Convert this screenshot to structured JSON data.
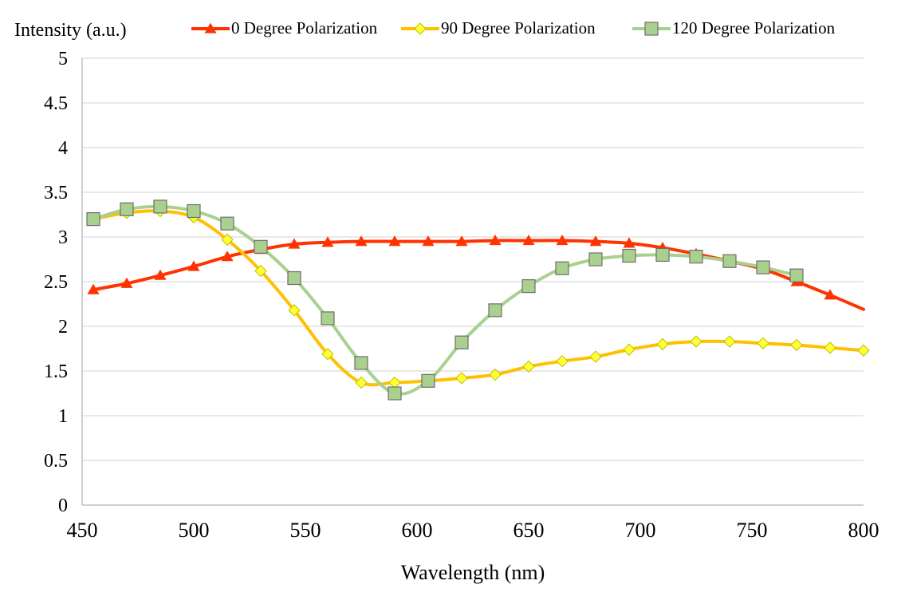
{
  "chart_data": {
    "type": "line",
    "title": "",
    "xlabel": "Wavelength  (nm)",
    "ylabel": "Intensity  (a.u.)",
    "xlim": [
      450,
      800
    ],
    "ylim": [
      0,
      5
    ],
    "x_ticks": [
      450,
      500,
      550,
      600,
      650,
      700,
      750,
      800
    ],
    "y_ticks": [
      0,
      0.5,
      1,
      1.5,
      2,
      2.5,
      3,
      3.5,
      4,
      4.5,
      5
    ],
    "x_tick_labels": [
      "450",
      "500",
      "550",
      "600",
      "650",
      "700",
      "750",
      "800"
    ],
    "y_tick_labels": [
      "0",
      "0.5",
      "1",
      "1.5",
      "2",
      "2.5",
      "3",
      "3.5",
      "4",
      "4.5",
      "5"
    ],
    "grid": "horizontal",
    "legend_position": "top",
    "series": [
      {
        "name": "0 Degree Polarization",
        "color": "#ff3300",
        "marker": "triangle",
        "marker_color": "#ff3300",
        "x": [
          455,
          470,
          485,
          500,
          515,
          530,
          545,
          560,
          575,
          590,
          605,
          620,
          635,
          650,
          665,
          680,
          695,
          710,
          725,
          740,
          755,
          770,
          785,
          800
        ],
        "y": [
          2.41,
          2.48,
          2.57,
          2.67,
          2.78,
          2.86,
          2.92,
          2.94,
          2.95,
          2.95,
          2.95,
          2.95,
          2.96,
          2.96,
          2.96,
          2.95,
          2.93,
          2.88,
          2.81,
          2.73,
          2.64,
          2.5,
          2.35,
          2.19
        ]
      },
      {
        "name": "90 Degree Polarization",
        "color": "#ffc000",
        "marker": "diamond",
        "marker_color": "#ffff33",
        "x": [
          455,
          470,
          485,
          500,
          515,
          530,
          545,
          560,
          575,
          590,
          605,
          620,
          635,
          650,
          665,
          680,
          695,
          710,
          725,
          740,
          755,
          770,
          785,
          800
        ],
        "y": [
          3.2,
          3.27,
          3.29,
          3.22,
          2.97,
          2.62,
          2.18,
          1.69,
          1.37,
          1.37,
          1.39,
          1.42,
          1.46,
          1.55,
          1.61,
          1.66,
          1.74,
          1.8,
          1.83,
          1.83,
          1.81,
          1.79,
          1.76,
          1.73
        ]
      },
      {
        "name": "120 Degree Polarization",
        "color": "#a9d08e",
        "marker": "square",
        "marker_color": "#a9d08e",
        "x": [
          455,
          470,
          485,
          500,
          515,
          530,
          545,
          560,
          575,
          590,
          605,
          620,
          635,
          650,
          665,
          680,
          695,
          710,
          725,
          740,
          755,
          770
        ],
        "y": [
          3.2,
          3.31,
          3.34,
          3.29,
          3.15,
          2.89,
          2.54,
          2.09,
          1.59,
          1.25,
          1.39,
          1.82,
          2.18,
          2.45,
          2.65,
          2.75,
          2.79,
          2.8,
          2.78,
          2.73,
          2.66,
          2.57
        ]
      }
    ]
  }
}
